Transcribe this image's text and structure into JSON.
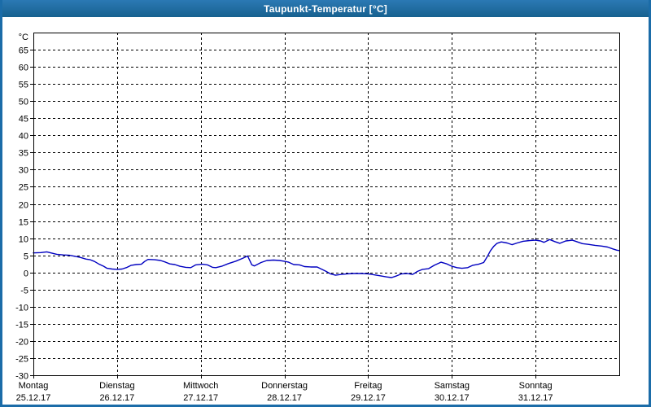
{
  "window": {
    "title": "Taupunkt-Temperatur [°C]",
    "titlebar_color": "#1b6ca8",
    "border_color": "#1b6ca8"
  },
  "chart_data": {
    "type": "line",
    "title": "Taupunkt-Temperatur [°C]",
    "grid": "dashed",
    "plot_bg": "#ffffff",
    "grid_color": "#000000",
    "label_color": "#000000",
    "y_axis": {
      "unit_label": "°C",
      "min": -30,
      "max": 70,
      "tick_step": 5,
      "tick_labels": [
        65,
        60,
        55,
        50,
        45,
        40,
        35,
        30,
        25,
        20,
        15,
        10,
        5,
        0,
        -5,
        -10,
        -15,
        -20,
        -25,
        -30
      ]
    },
    "x_axis": {
      "days": [
        {
          "name": "Montag",
          "date": "25.12.17"
        },
        {
          "name": "Dienstag",
          "date": "26.12.17"
        },
        {
          "name": "Mittwoch",
          "date": "27.12.17"
        },
        {
          "name": "Donnerstag",
          "date": "28.12.17"
        },
        {
          "name": "Freitag",
          "date": "29.12.17"
        },
        {
          "name": "Samstag",
          "date": "30.12.17"
        },
        {
          "name": "Sonntag",
          "date": "31.12.17"
        }
      ]
    },
    "series": [
      {
        "name": "Taupunkt",
        "color": "#0000c0",
        "points": [
          [
            0.0,
            5.7
          ],
          [
            0.09,
            5.8
          ],
          [
            0.16,
            6.0
          ],
          [
            0.21,
            5.7
          ],
          [
            0.28,
            5.3
          ],
          [
            0.36,
            5.1
          ],
          [
            0.43,
            5.0
          ],
          [
            0.5,
            4.7
          ],
          [
            0.56,
            4.4
          ],
          [
            0.63,
            3.9
          ],
          [
            0.68,
            3.7
          ],
          [
            0.73,
            3.2
          ],
          [
            0.78,
            2.5
          ],
          [
            0.84,
            1.8
          ],
          [
            0.88,
            1.2
          ],
          [
            0.94,
            1.0
          ],
          [
            1.0,
            0.9
          ],
          [
            1.06,
            1.0
          ],
          [
            1.12,
            1.5
          ],
          [
            1.17,
            2.1
          ],
          [
            1.23,
            2.3
          ],
          [
            1.29,
            2.4
          ],
          [
            1.33,
            3.2
          ],
          [
            1.37,
            3.8
          ],
          [
            1.45,
            3.7
          ],
          [
            1.52,
            3.5
          ],
          [
            1.58,
            3.0
          ],
          [
            1.63,
            2.5
          ],
          [
            1.69,
            2.3
          ],
          [
            1.75,
            1.8
          ],
          [
            1.82,
            1.5
          ],
          [
            1.88,
            1.4
          ],
          [
            1.94,
            2.2
          ],
          [
            2.02,
            2.4
          ],
          [
            2.08,
            2.2
          ],
          [
            2.14,
            1.5
          ],
          [
            2.18,
            1.4
          ],
          [
            2.25,
            1.8
          ],
          [
            2.33,
            2.6
          ],
          [
            2.42,
            3.3
          ],
          [
            2.5,
            4.1
          ],
          [
            2.56,
            4.8
          ],
          [
            2.61,
            2.2
          ],
          [
            2.64,
            1.9
          ],
          [
            2.72,
            2.9
          ],
          [
            2.79,
            3.5
          ],
          [
            2.87,
            3.6
          ],
          [
            2.94,
            3.5
          ],
          [
            2.99,
            3.3
          ],
          [
            3.05,
            3.0
          ],
          [
            3.11,
            2.3
          ],
          [
            3.18,
            2.2
          ],
          [
            3.24,
            1.7
          ],
          [
            3.32,
            1.6
          ],
          [
            3.39,
            1.6
          ],
          [
            3.44,
            1.0
          ],
          [
            3.49,
            0.4
          ],
          [
            3.55,
            -0.4
          ],
          [
            3.61,
            -0.8
          ],
          [
            3.67,
            -0.6
          ],
          [
            3.75,
            -0.4
          ],
          [
            3.83,
            -0.3
          ],
          [
            3.92,
            -0.3
          ],
          [
            4.0,
            -0.4
          ],
          [
            4.07,
            -0.7
          ],
          [
            4.15,
            -1.0
          ],
          [
            4.22,
            -1.3
          ],
          [
            4.28,
            -1.5
          ],
          [
            4.34,
            -1.0
          ],
          [
            4.4,
            -0.4
          ],
          [
            4.47,
            -0.3
          ],
          [
            4.53,
            -0.6
          ],
          [
            4.59,
            0.3
          ],
          [
            4.65,
            0.9
          ],
          [
            4.72,
            1.1
          ],
          [
            4.79,
            2.1
          ],
          [
            4.87,
            3.0
          ],
          [
            4.94,
            2.5
          ],
          [
            5.0,
            1.8
          ],
          [
            5.06,
            1.4
          ],
          [
            5.12,
            1.2
          ],
          [
            5.19,
            1.4
          ],
          [
            5.25,
            2.1
          ],
          [
            5.32,
            2.4
          ],
          [
            5.38,
            2.9
          ],
          [
            5.42,
            4.5
          ],
          [
            5.46,
            6.3
          ],
          [
            5.5,
            7.6
          ],
          [
            5.54,
            8.5
          ],
          [
            5.59,
            8.9
          ],
          [
            5.66,
            8.6
          ],
          [
            5.72,
            8.1
          ],
          [
            5.78,
            8.6
          ],
          [
            5.85,
            9.1
          ],
          [
            5.93,
            9.3
          ],
          [
            6.0,
            9.4
          ],
          [
            6.06,
            9.2
          ],
          [
            6.1,
            8.8
          ],
          [
            6.17,
            9.6
          ],
          [
            6.23,
            9.0
          ],
          [
            6.29,
            8.5
          ],
          [
            6.36,
            9.2
          ],
          [
            6.44,
            9.4
          ],
          [
            6.5,
            8.9
          ],
          [
            6.56,
            8.4
          ],
          [
            6.63,
            8.2
          ],
          [
            6.71,
            7.9
          ],
          [
            6.79,
            7.7
          ],
          [
            6.86,
            7.4
          ],
          [
            6.92,
            6.9
          ],
          [
            6.97,
            6.5
          ],
          [
            7.0,
            6.4
          ]
        ]
      }
    ]
  }
}
